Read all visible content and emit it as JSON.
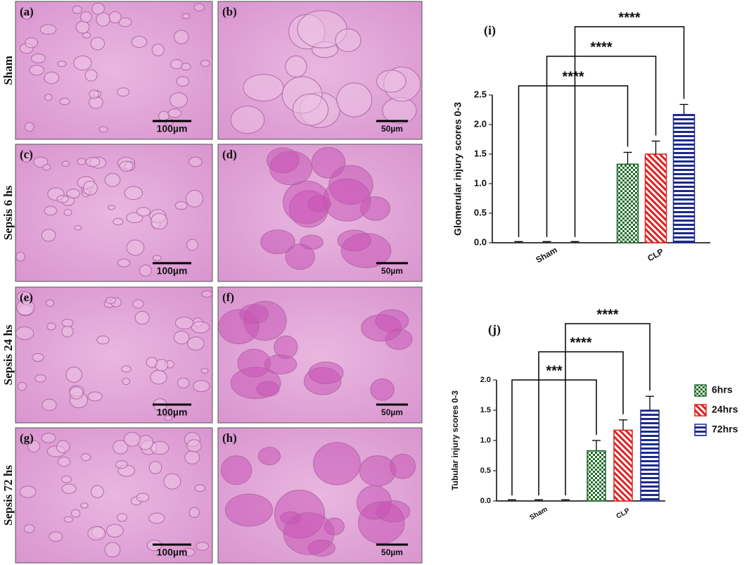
{
  "figure": {
    "rows": [
      "Sham",
      "Sepsis 6 hs",
      "Sepsis 24 hs",
      "Sepsis 72 hs"
    ],
    "panels": [
      {
        "label": "(a)",
        "scale": "100µm"
      },
      {
        "label": "(b)",
        "scale": "50µm"
      },
      {
        "label": "(c)",
        "scale": "100µm"
      },
      {
        "label": "(d)",
        "scale": "50µm"
      },
      {
        "label": "(e)",
        "scale": "100µm"
      },
      {
        "label": "(f)",
        "scale": "50µm"
      },
      {
        "label": "(g)",
        "scale": "100µm"
      },
      {
        "label": "(h)",
        "scale": "50µm"
      }
    ]
  },
  "chart_data": [
    {
      "type": "bar",
      "title": "(i)",
      "y_label": "Glomerular injury scores 0-3",
      "categories": [
        "Sham",
        "CLP"
      ],
      "series": [
        {
          "color": "#1e6b2a",
          "pattern": "checker",
          "values": [
            0,
            1.33
          ],
          "errors": [
            0.02,
            0.2
          ]
        },
        {
          "color": "#e02020",
          "pattern": "diagonal",
          "values": [
            0,
            1.5
          ],
          "errors": [
            0.02,
            0.22
          ]
        },
        {
          "color": "#1c2a8c",
          "pattern": "horizontal",
          "values": [
            0,
            2.17
          ],
          "errors": [
            0.02,
            0.17
          ]
        }
      ],
      "significance": [
        "****",
        "****",
        "****"
      ],
      "ylim": [
        0,
        2.5
      ],
      "yticks": [
        {
          "value": 0,
          "label": "0.0"
        },
        {
          "value": 0.5,
          "label": "0.5"
        },
        {
          "value": 1,
          "label": "1.0"
        },
        {
          "value": 1.5,
          "label": "1.5"
        },
        {
          "value": 2,
          "label": "2.0"
        },
        {
          "value": 2.5,
          "label": "2.5"
        }
      ]
    },
    {
      "type": "bar",
      "title": "(j)",
      "y_label": "Tubular injury scores 0-3",
      "categories": [
        "Sham",
        "CLP"
      ],
      "series": [
        {
          "name": "6hrs",
          "color": "#1e6b2a",
          "pattern": "checker",
          "values": [
            0,
            0.83
          ],
          "errors": [
            0.02,
            0.17
          ]
        },
        {
          "name": "24hrs",
          "color": "#e02020",
          "pattern": "diagonal",
          "values": [
            0,
            1.17
          ],
          "errors": [
            0.02,
            0.17
          ]
        },
        {
          "name": "72hrs",
          "color": "#1c2a8c",
          "pattern": "horizontal",
          "values": [
            0,
            1.5
          ],
          "errors": [
            0.02,
            0.23
          ]
        }
      ],
      "significance": [
        "***",
        "****",
        "****"
      ],
      "ylim": [
        0,
        2
      ],
      "yticks": [
        {
          "value": 0,
          "label": "0.0"
        },
        {
          "value": 0.5,
          "label": "0.5"
        },
        {
          "value": 1,
          "label": "1.0"
        },
        {
          "value": 1.5,
          "label": "1.5"
        },
        {
          "value": 2,
          "label": "2.0"
        }
      ]
    }
  ]
}
